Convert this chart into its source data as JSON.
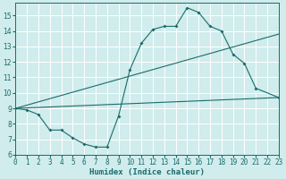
{
  "bg_color": "#d0ecec",
  "grid_color": "#b8d8d8",
  "line_color": "#1a6b6b",
  "line1_x": [
    0,
    1,
    2,
    3,
    4,
    5,
    6,
    7,
    8,
    9,
    10,
    11,
    12,
    13,
    14,
    15,
    16,
    17,
    18,
    19,
    20,
    21,
    23
  ],
  "line1_y": [
    9.0,
    8.9,
    8.6,
    7.6,
    7.6,
    7.1,
    6.7,
    6.5,
    6.5,
    8.5,
    11.5,
    13.2,
    14.1,
    14.3,
    14.3,
    15.5,
    15.2,
    14.3,
    14.0,
    12.5,
    11.9,
    10.3,
    9.7
  ],
  "line2_x": [
    0,
    23
  ],
  "line2_y": [
    9.0,
    13.8
  ],
  "line3_x": [
    0,
    23
  ],
  "line3_y": [
    9.0,
    9.7
  ],
  "xlim": [
    0,
    23
  ],
  "ylim": [
    6,
    15.8
  ],
  "yticks": [
    6,
    7,
    8,
    9,
    10,
    11,
    12,
    13,
    14,
    15
  ],
  "xticks": [
    0,
    1,
    2,
    3,
    4,
    5,
    6,
    7,
    8,
    9,
    10,
    11,
    12,
    13,
    14,
    15,
    16,
    17,
    18,
    19,
    20,
    21,
    22,
    23
  ],
  "xlabel": "Humidex (Indice chaleur)",
  "tick_fontsize": 5.5,
  "label_fontsize": 6.5,
  "ytick_fontsize": 5.5
}
